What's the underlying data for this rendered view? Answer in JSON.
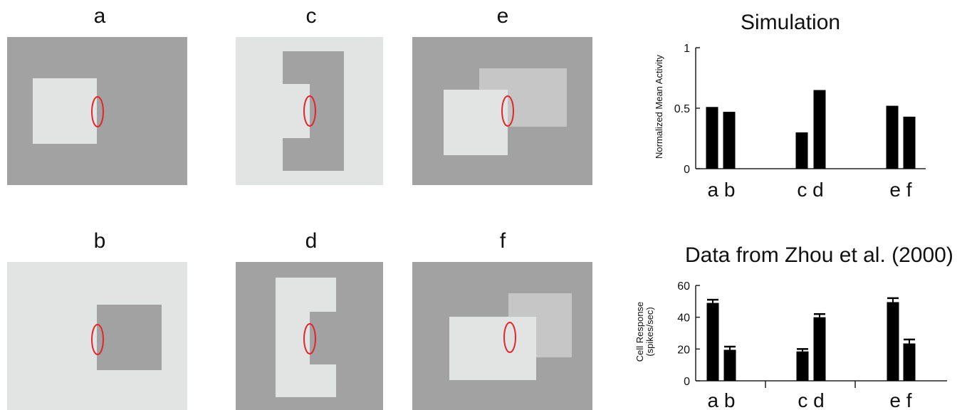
{
  "colors": {
    "dark_gray": "#a2a2a2",
    "light_gray": "#e2e4e4",
    "mid_gray": "#c6c6c6",
    "receptive_field": "#e2262a",
    "bar": "#000000"
  },
  "panels": {
    "a": {
      "label": "a"
    },
    "b": {
      "label": "b"
    },
    "c": {
      "label": "c"
    },
    "d": {
      "label": "d"
    },
    "e": {
      "label": "e"
    },
    "f": {
      "label": "f"
    }
  },
  "simulation": {
    "title": "Simulation",
    "chart_data": {
      "type": "bar",
      "title": "Simulation",
      "ylabel": "Normalized Mean Activity",
      "ylim": [
        0,
        1
      ],
      "yticks": [
        "0",
        "0.5",
        "1"
      ],
      "categories": [
        "a",
        "b",
        "c",
        "d",
        "e",
        "f"
      ],
      "group_labels": [
        "a b",
        "c d",
        "e f"
      ],
      "values": [
        0.51,
        0.47,
        0.3,
        0.65,
        0.52,
        0.43
      ]
    }
  },
  "data": {
    "title": "Data from Zhou et al. (2000)",
    "chart_data": {
      "type": "bar",
      "title": "Data from Zhou et al. (2000)",
      "ylabel_line1": "Cell Response",
      "ylabel_line2": "(spikes/sec)",
      "ylim": [
        0,
        60
      ],
      "yticks": [
        "0",
        "20",
        "40",
        "60"
      ],
      "categories": [
        "a",
        "b",
        "c",
        "d",
        "e",
        "f"
      ],
      "group_labels": [
        "a b",
        "c d",
        "e f"
      ],
      "values": [
        49,
        19.5,
        18.5,
        40,
        49.5,
        23.5
      ],
      "errors": [
        2,
        2,
        1.5,
        2,
        2.5,
        2.5
      ]
    }
  }
}
